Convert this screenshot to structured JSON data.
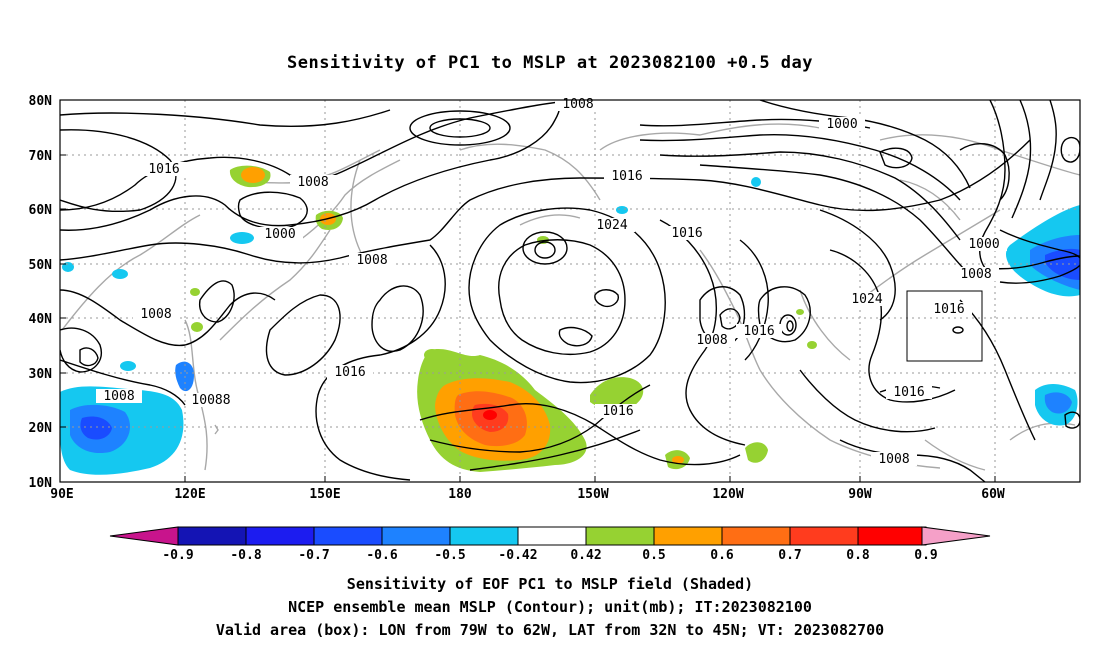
{
  "title": "Sensitivity of PC1 to MSLP at 2023082100 +0.5 day",
  "lat_labels": [
    "80N",
    "70N",
    "60N",
    "50N",
    "40N",
    "30N",
    "20N",
    "10N"
  ],
  "lon_labels": [
    "90E",
    "120E",
    "150E",
    "180",
    "150W",
    "120W",
    "90W",
    "60W"
  ],
  "contour_labels": [
    "1008",
    "1000",
    "1016",
    "1008",
    "1000",
    "1016",
    "1008",
    "1024",
    "1016",
    "1000",
    "1008",
    "1008",
    "1024",
    "1016",
    "1016",
    "1008",
    "1016",
    "1008",
    "10088",
    "1016",
    "1016",
    "1008"
  ],
  "colorbar": {
    "labels": [
      "-0.9",
      "-0.8",
      "-0.7",
      "-0.6",
      "-0.5",
      "-0.42",
      "0.42",
      "0.5",
      "0.6",
      "0.7",
      "0.8",
      "0.9"
    ],
    "colors": [
      "#1414b4",
      "#1c1cf0",
      "#1a4cff",
      "#1e82ff",
      "#15c8f0",
      "#ffffff",
      "#96d232",
      "#ffa000",
      "#ff6e14",
      "#ff3c1e",
      "#ff0000"
    ],
    "low_end_color": "#c8148c",
    "high_end_color": "#f5a0c8"
  },
  "captions": {
    "line1": "Sensitivity of EOF PC1 to MSLP field (Shaded)",
    "line2": "NCEP ensemble mean MSLP (Contour); unit(mb); IT:2023082100",
    "line3": "Valid area (box): LON from 79W to 62W, LAT from 32N to 45N; VT: 2023082700"
  }
}
